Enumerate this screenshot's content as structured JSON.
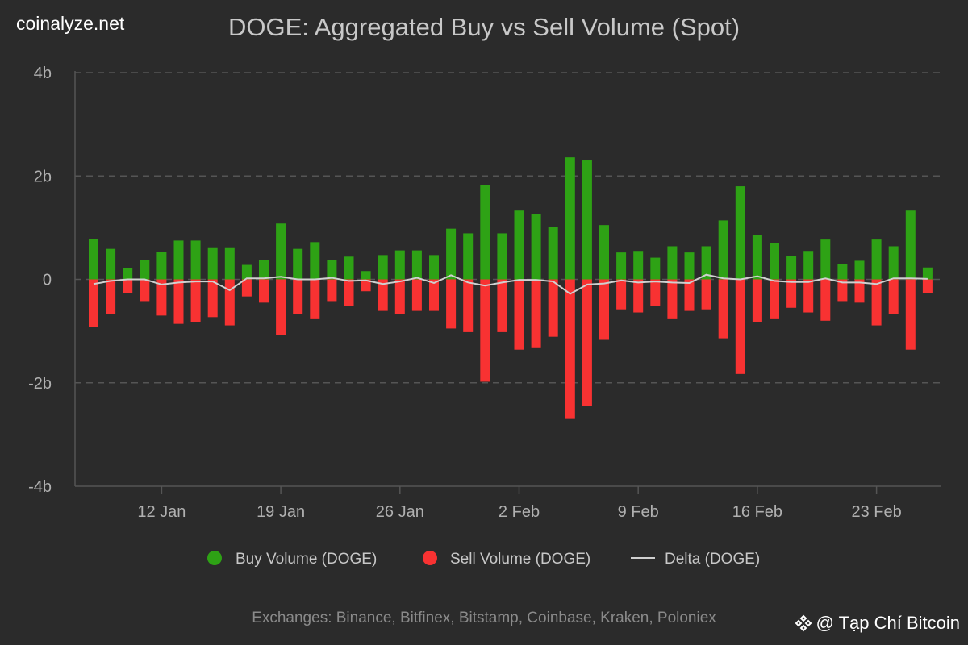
{
  "brand": "coinalyze.net",
  "footer": "Exchanges: Binance, Bitfinex, Bitstamp, Coinbase, Kraken, Poloniex",
  "watermark": "@ Tạp Chí Bitcoin",
  "chart_data": {
    "type": "bar",
    "title": "DOGE: Aggregated Buy vs Sell Volume (Spot)",
    "x_start": "8 Jan",
    "x_end": "26 Feb",
    "x_ticks": [
      "12 Jan",
      "19 Jan",
      "26 Jan",
      "2 Feb",
      "9 Feb",
      "16 Feb",
      "23 Feb"
    ],
    "y_ticks": [
      "4b",
      "2b",
      "0",
      "-2b",
      "-4b"
    ],
    "ylim": [
      -4,
      4
    ],
    "y_unit": "billion DOGE",
    "grid": true,
    "legend_position": "bottom",
    "colors": {
      "buy": "#2ea215",
      "sell": "#f83232",
      "delta": "#d0d0d0"
    },
    "series": [
      {
        "name": "Buy Volume (DOGE)",
        "kind": "bar",
        "values": [
          0.78,
          0.59,
          0.22,
          0.37,
          0.53,
          0.75,
          0.75,
          0.62,
          0.62,
          0.28,
          0.37,
          1.08,
          0.59,
          0.72,
          0.37,
          0.44,
          0.16,
          0.47,
          0.56,
          0.56,
          0.47,
          0.98,
          0.89,
          1.83,
          0.89,
          1.33,
          1.26,
          1.01,
          2.36,
          2.3,
          1.05,
          0.52,
          0.55,
          0.42,
          0.64,
          0.52,
          0.64,
          1.14,
          1.8,
          0.86,
          0.7,
          0.45,
          0.55,
          0.77,
          0.3,
          0.36,
          0.77,
          0.64,
          1.33,
          0.23
        ]
      },
      {
        "name": "Sell Volume (DOGE)",
        "kind": "bar",
        "values": [
          -0.92,
          -0.67,
          -0.27,
          -0.42,
          -0.7,
          -0.86,
          -0.83,
          -0.73,
          -0.89,
          -0.33,
          -0.45,
          -1.08,
          -0.67,
          -0.77,
          -0.42,
          -0.52,
          -0.23,
          -0.61,
          -0.67,
          -0.61,
          -0.61,
          -0.95,
          -1.02,
          -1.98,
          -1.02,
          -1.36,
          -1.33,
          -1.11,
          -2.7,
          -2.45,
          -1.17,
          -0.58,
          -0.64,
          -0.52,
          -0.77,
          -0.61,
          -0.58,
          -1.14,
          -1.83,
          -0.83,
          -0.77,
          -0.55,
          -0.64,
          -0.8,
          -0.42,
          -0.45,
          -0.89,
          -0.67,
          -1.36,
          -0.27
        ]
      },
      {
        "name": "Delta (DOGE)",
        "kind": "line",
        "values": [
          -0.09,
          -0.03,
          0,
          0,
          -0.1,
          -0.06,
          -0.04,
          -0.04,
          -0.21,
          0.02,
          0.02,
          0.05,
          0,
          0,
          0.03,
          -0.03,
          -0.02,
          -0.09,
          -0.04,
          0.03,
          -0.07,
          0.08,
          -0.06,
          -0.12,
          -0.06,
          -0.01,
          -0.01,
          -0.04,
          -0.28,
          -0.1,
          -0.08,
          -0.02,
          -0.06,
          -0.04,
          -0.06,
          -0.07,
          0.09,
          0.02,
          0,
          0.06,
          -0.03,
          -0.05,
          -0.05,
          0.02,
          -0.06,
          -0.06,
          -0.09,
          0.02,
          0.02,
          0.01
        ]
      }
    ]
  }
}
